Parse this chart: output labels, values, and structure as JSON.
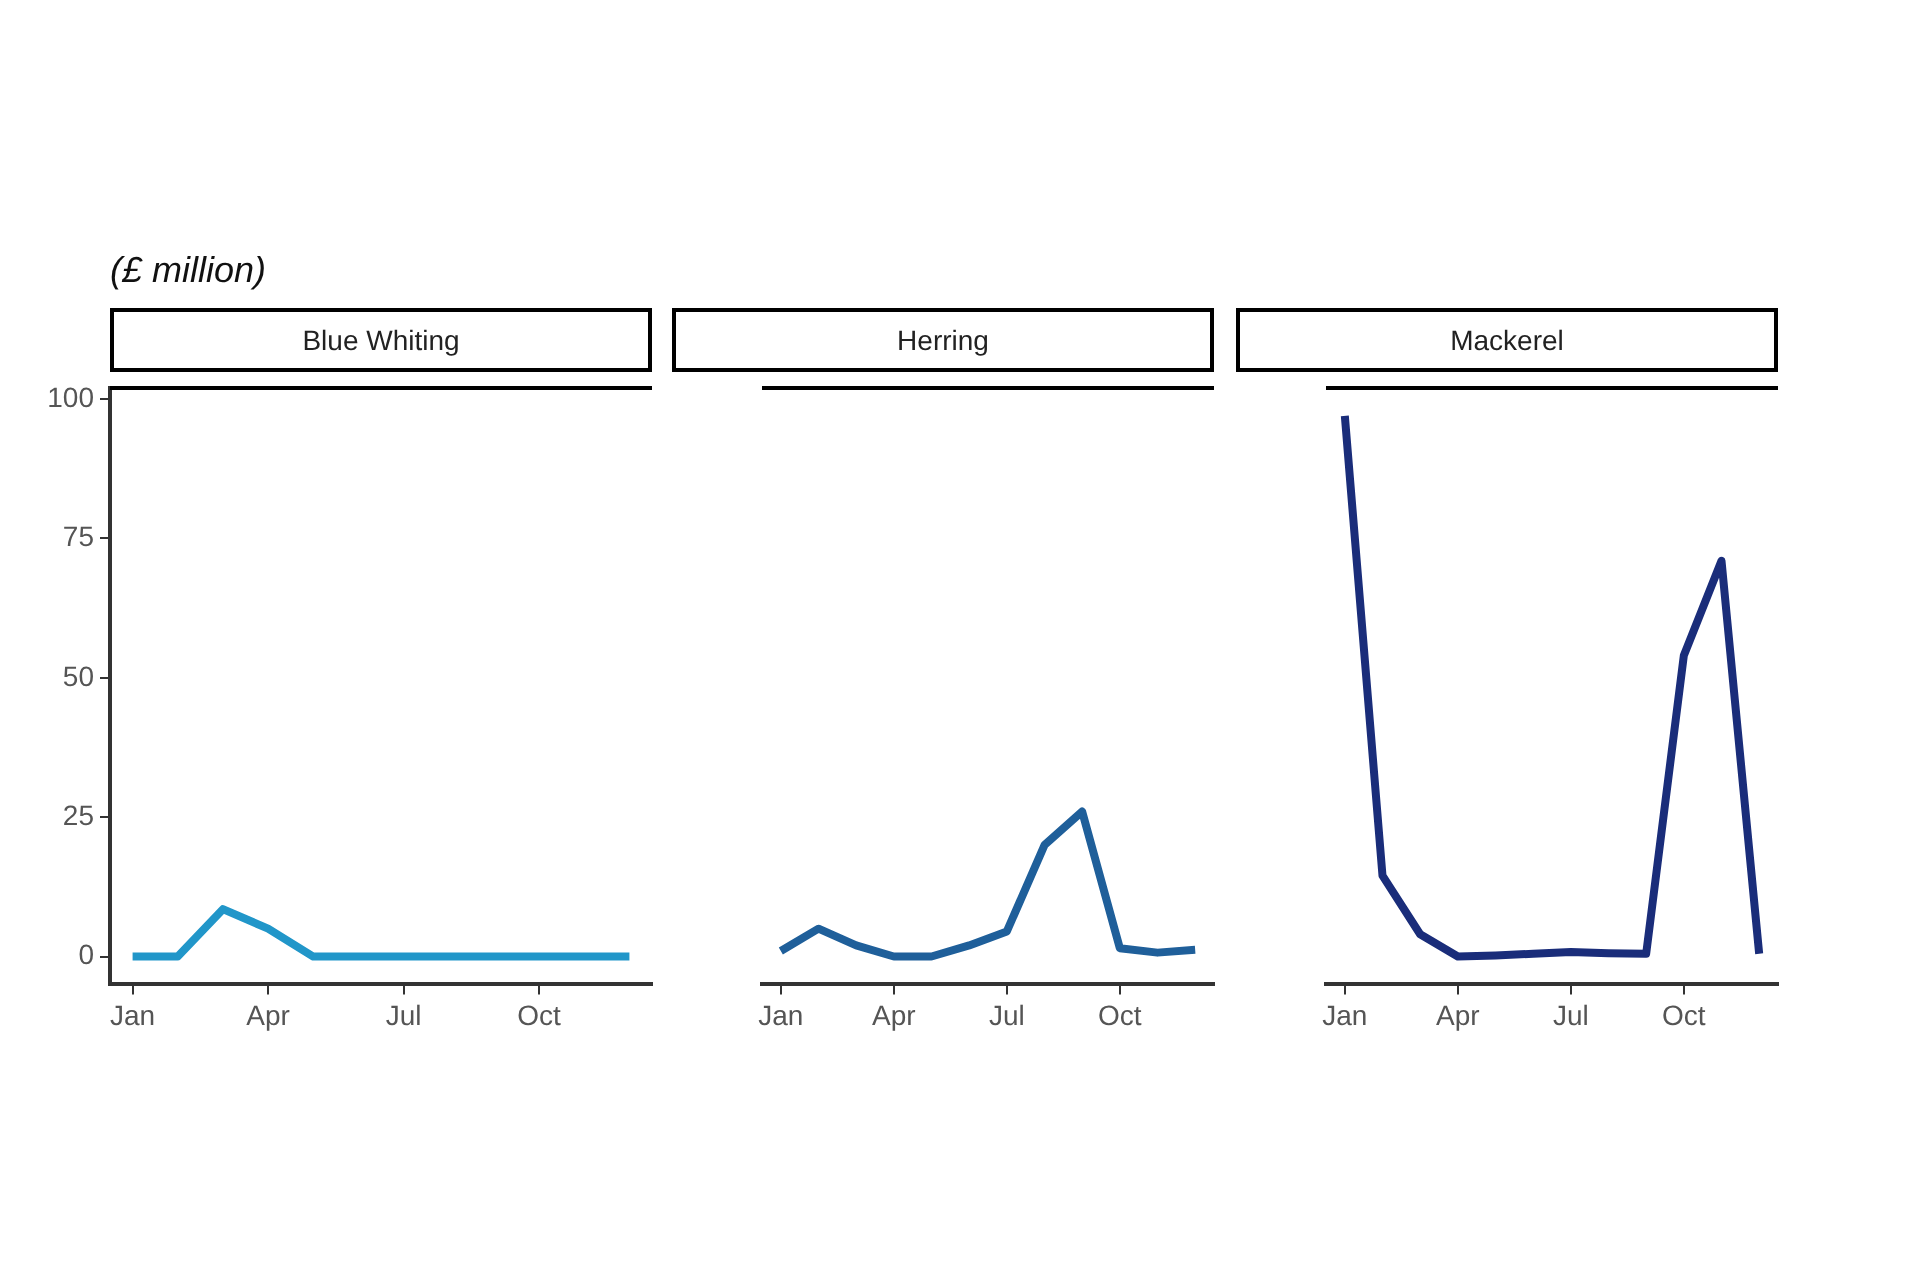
{
  "chart_data": [
    {
      "type": "line",
      "title": "Blue Whiting",
      "ylabel": "(£ million)",
      "categories": [
        "Jan",
        null,
        null,
        "Apr",
        null,
        null,
        "Jul",
        null,
        null,
        "Oct",
        null,
        null
      ],
      "marker": "none",
      "ylim": [
        -5,
        102
      ],
      "yticks": [
        0,
        25,
        50,
        75,
        100
      ],
      "series": [
        {
          "color": "#2196c9",
          "values": [
            0,
            0,
            8.5,
            5,
            0,
            0,
            0,
            0,
            0,
            0,
            0,
            0
          ]
        }
      ]
    },
    {
      "type": "line",
      "title": "Herring",
      "categories": [
        "Jan",
        null,
        null,
        "Apr",
        null,
        null,
        "Jul",
        null,
        null,
        "Oct",
        null,
        null
      ],
      "marker": "none",
      "ylim": [
        -5,
        102
      ],
      "yticks": [
        0,
        25,
        50,
        75,
        100
      ],
      "tick_labels": "x",
      "series": [
        {
          "color": "#1f5f9a",
          "values": [
            1,
            5,
            2,
            0,
            0,
            2,
            4.5,
            20,
            26,
            1.5,
            0.7,
            1.2
          ]
        }
      ]
    },
    {
      "type": "line",
      "title": "Mackerel",
      "categories": [
        "Jan",
        null,
        null,
        "Apr",
        null,
        null,
        "Jul",
        null,
        null,
        "Oct",
        null,
        null
      ],
      "marker": "none",
      "ylim": [
        -5,
        102
      ],
      "yticks": [
        0,
        25,
        50,
        75,
        100
      ],
      "tick_labels": "x",
      "series": [
        {
          "color": "#1a2d7a",
          "values": [
            97,
            14.5,
            4,
            0,
            0.2,
            0.5,
            0.8,
            0.6,
            0.5,
            54,
            71,
            0.5
          ]
        }
      ]
    }
  ]
}
